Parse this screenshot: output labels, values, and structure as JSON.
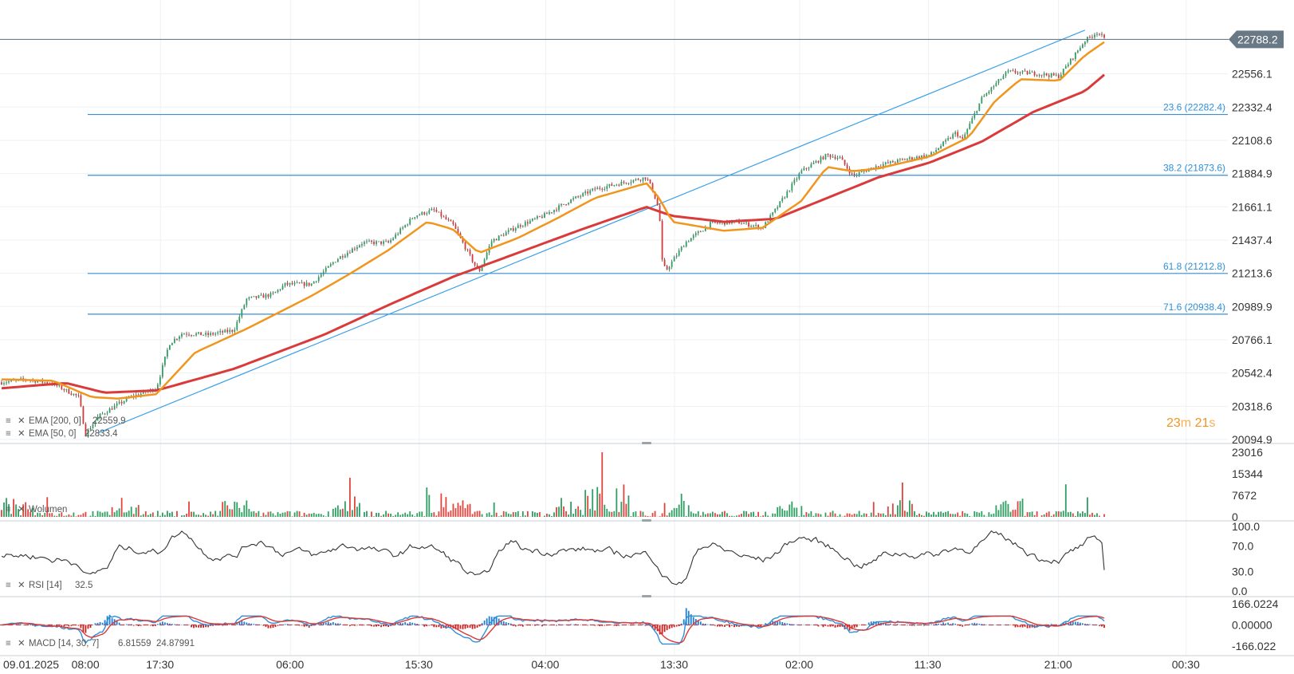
{
  "chart_data": [
    {
      "type": "candlestick",
      "name": "price",
      "x_ticks": [
        "09.01.2025",
        "08:00",
        "17:30",
        "06:00",
        "15:30",
        "04:00",
        "13:30",
        "02:00",
        "11:30",
        "21:00",
        "00:30"
      ],
      "y_ticks": [
        "22556.1",
        "22332.4",
        "22108.6",
        "21884.9",
        "21661.1",
        "21437.4",
        "21213.6",
        "20989.9",
        "20766.1",
        "20542.4",
        "20318.6",
        "20094.9"
      ],
      "ylim": [
        20094.9,
        22860
      ],
      "last_price": "22788.2",
      "timer": {
        "minutes": "23",
        "minutes_unit": "m",
        "seconds": "21",
        "seconds_unit": "s"
      },
      "fibonacci_levels": [
        {
          "label": "23.6 (22282.4)",
          "value": 22282.4
        },
        {
          "label": "38.2 (21873.6)",
          "value": 21873.6
        },
        {
          "label": "61.8 (21212.8)",
          "value": 21212.8
        },
        {
          "label": "71.6 (20938.4)",
          "value": 20938.4
        }
      ],
      "trendline": {
        "from": {
          "bar": 0.075,
          "value": 20140
        },
        "to": {
          "bar": 0.84,
          "value": 22850
        }
      },
      "price_path": [
        [
          0.0,
          20480
        ],
        [
          0.02,
          20500
        ],
        [
          0.04,
          20470
        ],
        [
          0.06,
          20380
        ],
        [
          0.065,
          20130
        ],
        [
          0.075,
          20250
        ],
        [
          0.09,
          20330
        ],
        [
          0.1,
          20380
        ],
        [
          0.12,
          20440
        ],
        [
          0.13,
          20740
        ],
        [
          0.14,
          20810
        ],
        [
          0.16,
          20800
        ],
        [
          0.18,
          20830
        ],
        [
          0.19,
          21040
        ],
        [
          0.21,
          21070
        ],
        [
          0.22,
          21140
        ],
        [
          0.24,
          21140
        ],
        [
          0.26,
          21310
        ],
        [
          0.28,
          21420
        ],
        [
          0.3,
          21420
        ],
        [
          0.32,
          21600
        ],
        [
          0.335,
          21640
        ],
        [
          0.35,
          21540
        ],
        [
          0.36,
          21380
        ],
        [
          0.37,
          21220
        ],
        [
          0.38,
          21430
        ],
        [
          0.4,
          21530
        ],
        [
          0.42,
          21600
        ],
        [
          0.44,
          21700
        ],
        [
          0.46,
          21780
        ],
        [
          0.48,
          21820
        ],
        [
          0.5,
          21860
        ],
        [
          0.505,
          21770
        ],
        [
          0.51,
          21630
        ],
        [
          0.512,
          21300
        ],
        [
          0.515,
          21230
        ],
        [
          0.53,
          21420
        ],
        [
          0.55,
          21550
        ],
        [
          0.57,
          21560
        ],
        [
          0.59,
          21520
        ],
        [
          0.6,
          21640
        ],
        [
          0.62,
          21900
        ],
        [
          0.64,
          22010
        ],
        [
          0.65,
          21990
        ],
        [
          0.66,
          21870
        ],
        [
          0.68,
          21940
        ],
        [
          0.7,
          21980
        ],
        [
          0.72,
          22010
        ],
        [
          0.74,
          22160
        ],
        [
          0.745,
          22110
        ],
        [
          0.76,
          22390
        ],
        [
          0.77,
          22480
        ],
        [
          0.78,
          22570
        ],
        [
          0.8,
          22560
        ],
        [
          0.82,
          22540
        ],
        [
          0.84,
          22780
        ],
        [
          0.85,
          22840
        ],
        [
          0.855,
          22788
        ]
      ],
      "ema_200": {
        "label": "EMA [200, 0]",
        "value": "22559.9",
        "color": "#d93a3a",
        "path": [
          [
            0.0,
            20440
          ],
          [
            0.05,
            20475
          ],
          [
            0.08,
            20410
          ],
          [
            0.12,
            20425
          ],
          [
            0.18,
            20570
          ],
          [
            0.25,
            20800
          ],
          [
            0.3,
            21000
          ],
          [
            0.35,
            21190
          ],
          [
            0.4,
            21350
          ],
          [
            0.45,
            21510
          ],
          [
            0.5,
            21660
          ],
          [
            0.52,
            21600
          ],
          [
            0.56,
            21560
          ],
          [
            0.6,
            21580
          ],
          [
            0.64,
            21720
          ],
          [
            0.68,
            21860
          ],
          [
            0.72,
            21960
          ],
          [
            0.76,
            22100
          ],
          [
            0.8,
            22300
          ],
          [
            0.84,
            22440
          ],
          [
            0.855,
            22550
          ]
        ]
      },
      "ema_50": {
        "label": "EMA [50, 0]",
        "value": "22833.4",
        "color": "#f0961e",
        "path": [
          [
            0.0,
            20500
          ],
          [
            0.04,
            20490
          ],
          [
            0.07,
            20380
          ],
          [
            0.09,
            20370
          ],
          [
            0.12,
            20400
          ],
          [
            0.15,
            20680
          ],
          [
            0.19,
            20840
          ],
          [
            0.24,
            21060
          ],
          [
            0.27,
            21210
          ],
          [
            0.3,
            21370
          ],
          [
            0.33,
            21560
          ],
          [
            0.35,
            21510
          ],
          [
            0.37,
            21350
          ],
          [
            0.4,
            21450
          ],
          [
            0.43,
            21580
          ],
          [
            0.46,
            21720
          ],
          [
            0.5,
            21820
          ],
          [
            0.51,
            21720
          ],
          [
            0.52,
            21560
          ],
          [
            0.56,
            21500
          ],
          [
            0.59,
            21520
          ],
          [
            0.62,
            21700
          ],
          [
            0.64,
            21930
          ],
          [
            0.66,
            21900
          ],
          [
            0.68,
            21920
          ],
          [
            0.72,
            22000
          ],
          [
            0.75,
            22130
          ],
          [
            0.77,
            22370
          ],
          [
            0.79,
            22520
          ],
          [
            0.82,
            22510
          ],
          [
            0.84,
            22680
          ],
          [
            0.855,
            22770
          ]
        ]
      }
    },
    {
      "type": "bar",
      "name": "volume",
      "label": "Wolumen",
      "y_ticks": [
        "23016",
        "15344",
        "7672",
        "0"
      ],
      "ylim": [
        0,
        23016
      ],
      "colors": {
        "up": "#2e9e62",
        "down": "#e0443c"
      }
    },
    {
      "type": "line",
      "name": "rsi",
      "label": "RSI [14]",
      "value": "32.5",
      "y_ticks": [
        "100.0",
        "70.0",
        "30.0",
        "0.0"
      ],
      "ylim": [
        0,
        100
      ],
      "color": "#333333"
    },
    {
      "type": "line",
      "name": "macd",
      "label": "MACD [14, 30, 7]",
      "values": [
        "6.81559",
        "24.87991"
      ],
      "y_ticks": [
        "166.0224",
        "0.00000",
        "-166.022"
      ],
      "ylim": [
        -166.022,
        166.0224
      ],
      "colors": {
        "macd": "#2f8fd8",
        "signal": "#d93a3a",
        "histogram": "#1f7fd0"
      }
    }
  ]
}
